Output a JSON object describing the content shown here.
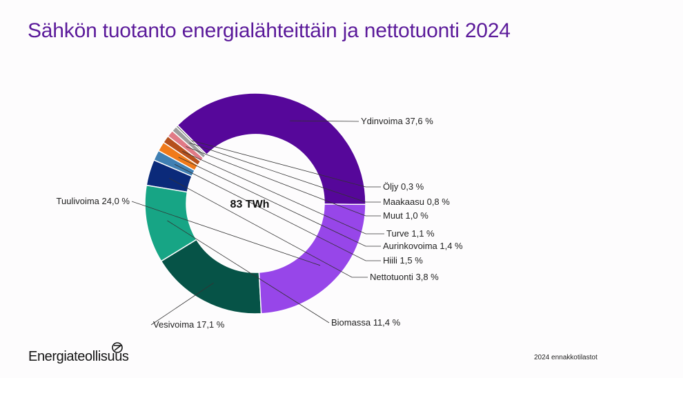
{
  "slide": {
    "title": "Sähkön tuotanto energialähteittäin ja nettotuonti 2024",
    "logo_text": "Energiateollisuus",
    "footnote": "2024 ennakkotilastot"
  },
  "chart_data": {
    "type": "donut",
    "center_label": "83 TWh",
    "unit": "%",
    "slices": [
      {
        "name": "Ydinvoima",
        "value": 37.6,
        "label": "Ydinvoima 37,6 %",
        "color": "#56079a"
      },
      {
        "name": "Öljy",
        "value": 0.3,
        "label": "Öljy 0,3 %",
        "color": "#7a7a7a"
      },
      {
        "name": "Maakaasu",
        "value": 0.8,
        "label": "Maakaasu 0,8 %",
        "color": "#9c9c9c"
      },
      {
        "name": "Muut",
        "value": 1.0,
        "label": "Muut 1,0 %",
        "color": "#e07a86"
      },
      {
        "name": "Turve",
        "value": 1.1,
        "label": "Turve 1,1 %",
        "color": "#b5501c"
      },
      {
        "name": "Aurinkovoima",
        "value": 1.4,
        "label": "Aurinkovoima 1,4 %",
        "color": "#f07a1a"
      },
      {
        "name": "Hiili",
        "value": 1.5,
        "label": "Hiili 1,5 %",
        "color": "#3f7fb3"
      },
      {
        "name": "Nettotuonti",
        "value": 3.8,
        "label": "Nettotuonti 3,8 %",
        "color": "#0b2a7a"
      },
      {
        "name": "Biomassa",
        "value": 11.4,
        "label": "Biomassa 11,4 %",
        "color": "#17a585"
      },
      {
        "name": "Vesivoima",
        "value": 17.1,
        "label": "Vesivoima 17,1 %",
        "color": "#065347"
      },
      {
        "name": "Tuulivoima",
        "value": 24.0,
        "label": "Tuulivoima 24,0 %",
        "color": "#9746e9"
      }
    ]
  }
}
